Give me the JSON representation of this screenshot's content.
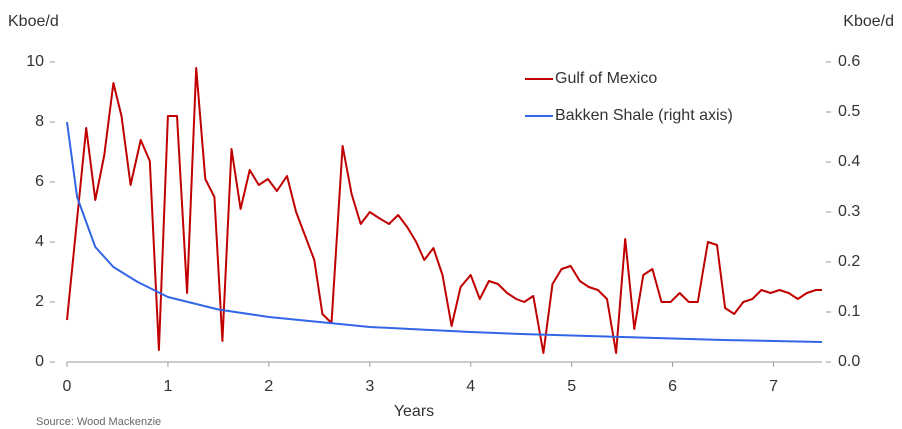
{
  "chart_data": {
    "type": "line",
    "y_label": "Kboe/d",
    "y2_label": "Kboe/d",
    "x_label": "Years",
    "source": "Source: Wood Mackenzie",
    "xlim": [
      0,
      7.48
    ],
    "xticks": [
      0,
      1,
      2,
      3,
      4,
      5,
      6,
      7
    ],
    "ylim": [
      0,
      10
    ],
    "yticks": [
      0,
      2,
      4,
      6,
      8,
      10
    ],
    "y2lim": [
      0,
      0.6
    ],
    "y2ticks": [
      {
        "value": 0,
        "label": "0.0"
      },
      0.1,
      0.2,
      0.3,
      0.4,
      0.5,
      0.6
    ],
    "legend": "top-right",
    "series": [
      {
        "name": "Gulf of Mexico",
        "color": "#c00000",
        "x": [
          0,
          0.19,
          0.28,
          0.37,
          0.46,
          0.54,
          0.63,
          0.73,
          0.82,
          0.91,
          1.0,
          1.09,
          1.19,
          1.28,
          1.37,
          1.46,
          1.54,
          1.63,
          1.72,
          1.81,
          1.9,
          1.99,
          2.08,
          2.18,
          2.27,
          2.36,
          2.45,
          2.53,
          2.62,
          2.73,
          2.82,
          2.91,
          3.0,
          3.09,
          3.19,
          3.28,
          3.37,
          3.46,
          3.54,
          3.63,
          3.72,
          3.81,
          3.9,
          4.0,
          4.09,
          4.18,
          4.27,
          4.36,
          4.45,
          4.53,
          4.62,
          4.72,
          4.81,
          4.9,
          4.99,
          5.08,
          5.17,
          5.26,
          5.35,
          5.44,
          5.53,
          5.62,
          5.71,
          5.8,
          5.89,
          5.98,
          6.07,
          6.16,
          6.25,
          6.35,
          6.44,
          6.52,
          6.61,
          6.7,
          6.79,
          6.88,
          6.97,
          7.06,
          7.15,
          7.24,
          7.33,
          7.42,
          7.48
        ],
        "values": [
          1.4,
          7.8,
          5.4,
          6.9,
          9.3,
          8.2,
          5.9,
          7.4,
          6.7,
          0.4,
          8.2,
          8.2,
          2.3,
          9.8,
          6.1,
          5.5,
          0.7,
          7.1,
          5.1,
          6.4,
          5.9,
          6.1,
          5.7,
          6.2,
          5.0,
          4.2,
          3.4,
          1.6,
          1.3,
          7.2,
          5.6,
          4.6,
          5.0,
          4.8,
          4.6,
          4.9,
          4.5,
          4.0,
          3.4,
          3.8,
          2.9,
          1.2,
          2.5,
          2.9,
          2.1,
          2.7,
          2.6,
          2.3,
          2.1,
          2.0,
          2.2,
          0.3,
          2.6,
          3.1,
          3.2,
          2.7,
          2.5,
          2.4,
          2.1,
          0.3,
          4.1,
          1.1,
          2.9,
          3.1,
          2.0,
          2.0,
          2.3,
          2.0,
          2.0,
          4.0,
          3.9,
          1.8,
          1.6,
          2.0,
          2.1,
          2.4,
          2.3,
          2.4,
          2.3,
          2.1,
          2.3,
          2.4,
          2.4
        ]
      },
      {
        "name": "Bakken Shale (right axis)",
        "color": "#3366e6",
        "axis": "y2",
        "x": [
          0,
          0.1,
          0.28,
          0.46,
          0.7,
          1.0,
          1.5,
          2,
          2.5,
          3,
          3.5,
          4,
          4.5,
          5,
          5.5,
          6,
          6.5,
          7,
          7.48
        ],
        "values": [
          0.48,
          0.33,
          0.23,
          0.19,
          0.16,
          0.13,
          0.105,
          0.09,
          0.08,
          0.07,
          0.065,
          0.06,
          0.056,
          0.053,
          0.05,
          0.047,
          0.044,
          0.042,
          0.04
        ]
      }
    ]
  }
}
